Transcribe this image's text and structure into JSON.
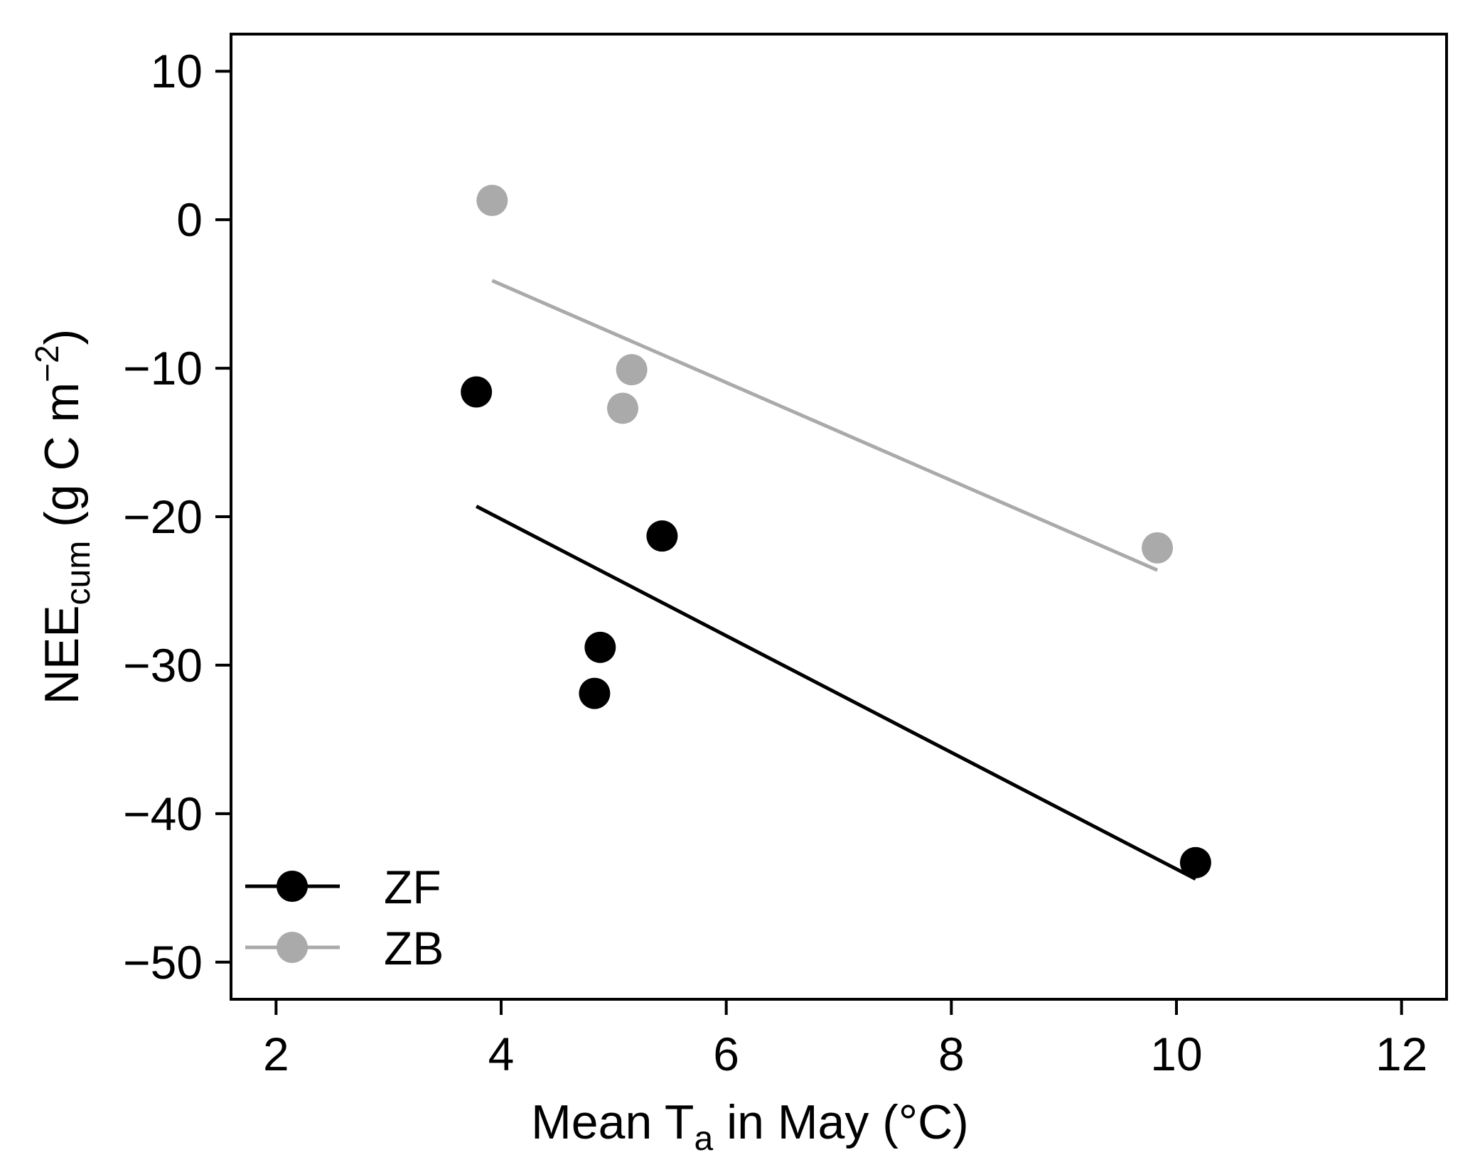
{
  "chart_data": {
    "type": "scatter",
    "xlabel": {
      "main": "Mean T",
      "sub": "a",
      "rest": " in May (°C)"
    },
    "ylabel": {
      "main": "NEE",
      "sub": "cum",
      "rest1": " (g C m",
      "sup": "−2",
      "rest2": ")"
    },
    "xlim": [
      1.6,
      12.4
    ],
    "ylim": [
      -52.5,
      12.5
    ],
    "x_ticks": [
      2,
      4,
      6,
      8,
      10,
      12
    ],
    "y_ticks": [
      10,
      0,
      -10,
      -20,
      -30,
      -40,
      -50
    ],
    "y_tick_labels": [
      "10",
      "0",
      "−10",
      "−20",
      "−30",
      "−40",
      "−50"
    ],
    "grid": false,
    "legend_position": "bottom-left",
    "series": [
      {
        "name": "ZF",
        "color": "#000000",
        "points": [
          {
            "x": 3.78,
            "y": -11.6
          },
          {
            "x": 5.43,
            "y": -21.3
          },
          {
            "x": 4.88,
            "y": -28.8
          },
          {
            "x": 4.83,
            "y": -31.9
          },
          {
            "x": 10.17,
            "y": -43.3
          }
        ],
        "fit": {
          "x": [
            3.78,
            10.17
          ],
          "y": [
            -19.3,
            -44.4
          ]
        }
      },
      {
        "name": "ZB",
        "color": "#aaaaaa",
        "points": [
          {
            "x": 3.92,
            "y": 1.3
          },
          {
            "x": 5.16,
            "y": -10.1
          },
          {
            "x": 5.08,
            "y": -12.7
          },
          {
            "x": 9.83,
            "y": -22.1
          }
        ],
        "fit": {
          "x": [
            3.92,
            9.83
          ],
          "y": [
            -4.1,
            -23.6
          ]
        }
      }
    ]
  }
}
